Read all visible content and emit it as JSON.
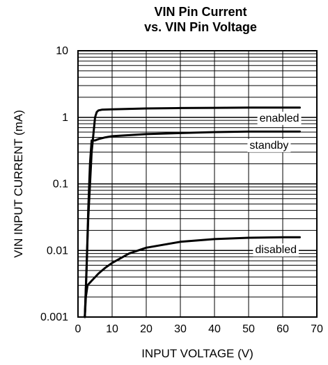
{
  "chart_data": {
    "type": "line",
    "title_line1": "VIN Pin Current",
    "title_line2": "vs. VIN Pin Voltage",
    "xlabel": "INPUT VOLTAGE (V)",
    "ylabel": "VIN INPUT CURRENT (mA)",
    "xlim": [
      0,
      70
    ],
    "ylim": [
      0.001,
      10
    ],
    "yscale": "log",
    "grid": true,
    "xticks": [
      0,
      10,
      20,
      30,
      40,
      50,
      60,
      70
    ],
    "xtick_labels": [
      "0",
      "10",
      "20",
      "30",
      "40",
      "50",
      "60",
      "70"
    ],
    "ytick_values": [
      10,
      1,
      0.1,
      0.01,
      0.001
    ],
    "ytick_labels": [
      "10",
      "1",
      "0.1",
      "0.01",
      "0.001"
    ],
    "series": [
      {
        "name": "enabled",
        "x": [
          2.0,
          3.0,
          4.0,
          5.0,
          5.5,
          6.0,
          7.0,
          10,
          20,
          30,
          40,
          50,
          60,
          65
        ],
        "y": [
          0.001,
          0.03,
          0.3,
          1.0,
          1.2,
          1.27,
          1.3,
          1.32,
          1.36,
          1.38,
          1.39,
          1.4,
          1.4,
          1.4
        ]
      },
      {
        "name": "standby",
        "x": [
          2.0,
          2.5,
          3.0,
          3.5,
          4.0,
          5.0,
          6.0,
          8,
          10,
          20,
          30,
          40,
          50,
          60,
          65
        ],
        "y": [
          0.001,
          0.005,
          0.04,
          0.2,
          0.45,
          0.45,
          0.47,
          0.5,
          0.52,
          0.56,
          0.58,
          0.6,
          0.61,
          0.61,
          0.61
        ]
      },
      {
        "name": "disabled",
        "x": [
          2.0,
          2.3,
          2.8,
          4,
          6,
          8,
          10,
          15,
          20,
          30,
          40,
          50,
          60,
          65
        ],
        "y": [
          0.001,
          0.002,
          0.003,
          0.0035,
          0.0045,
          0.0055,
          0.0065,
          0.009,
          0.011,
          0.0135,
          0.0148,
          0.0155,
          0.0158,
          0.0158
        ]
      }
    ]
  }
}
